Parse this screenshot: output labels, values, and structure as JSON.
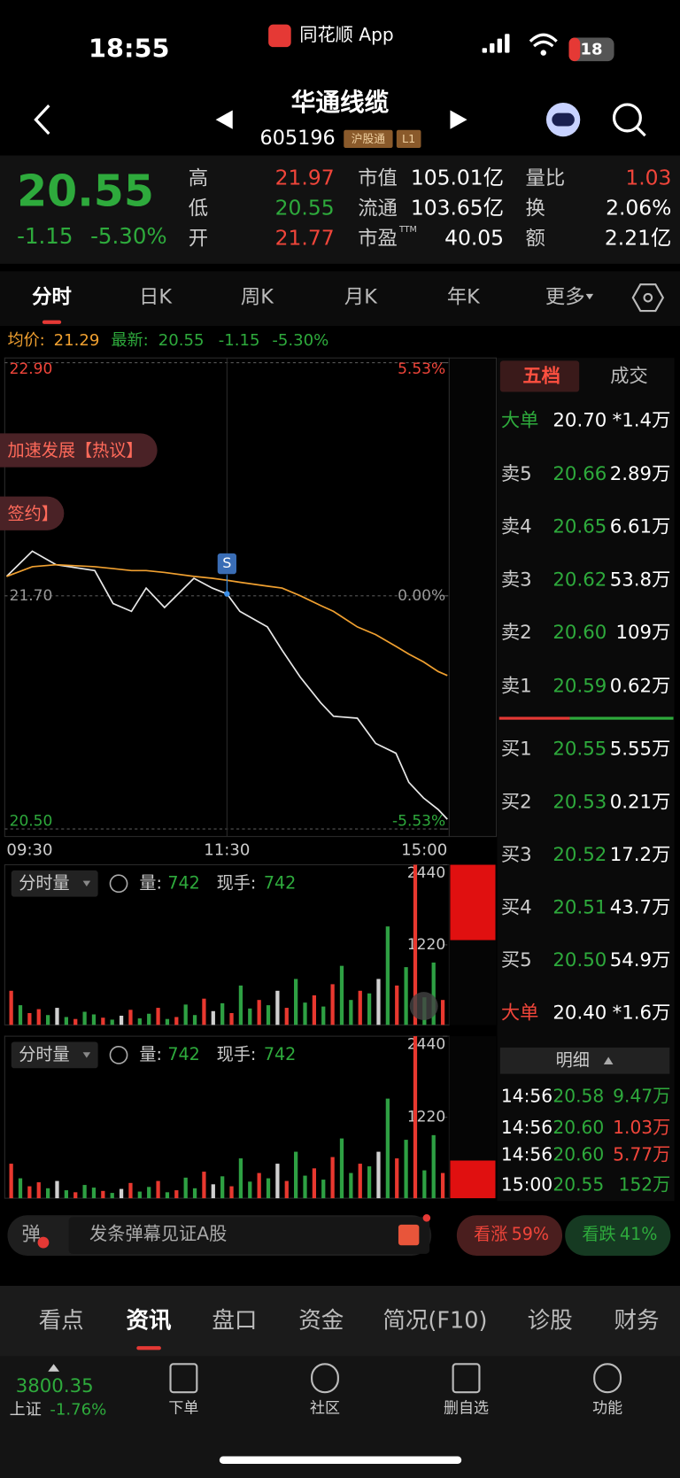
{
  "status_bar": {
    "time": "18:55",
    "app_name": "同花顺 App",
    "battery": "18"
  },
  "header": {
    "name": "华通线缆",
    "code": "605196",
    "tags": [
      "沪股通",
      "L1"
    ]
  },
  "quote": {
    "price": "20.55",
    "change": "-1.15",
    "change_percent": "-5.30%",
    "stats": [
      [
        {
          "label": "高",
          "value": "21.97",
          "color": "#f0453a"
        },
        {
          "label": "市值",
          "value": "105.01亿",
          "color": "#ffffff"
        },
        {
          "label": "量比",
          "value": "1.03",
          "color": "#f0453a"
        }
      ],
      [
        {
          "label": "低",
          "value": "20.55",
          "color": "#2eaa3c"
        },
        {
          "label": "流通",
          "value": "103.65亿",
          "color": "#ffffff"
        },
        {
          "label": "换",
          "value": "2.06%",
          "color": "#ffffff"
        }
      ],
      [
        {
          "label": "开",
          "value": "21.77",
          "color": "#f0453a"
        },
        {
          "label": "市盈",
          "sup": "TTM",
          "value": "40.05",
          "color": "#ffffff"
        },
        {
          "label": "额",
          "value": "2.21亿",
          "color": "#ffffff"
        }
      ]
    ]
  },
  "tabs": {
    "items": [
      "分时",
      "日K",
      "周K",
      "月K",
      "年K",
      "更多"
    ],
    "active": 0
  },
  "info_bar": {
    "avg_label": "均价:",
    "avg": "21.29",
    "last_label": "最新:",
    "last": "20.55",
    "change": "-1.15",
    "change_percent": "-5.30%"
  },
  "news_tags": [
    "加速发展【热议】",
    "签约】"
  ],
  "chart_data": [
    {
      "type": "line",
      "xlim": [
        0,
        240
      ],
      "xticks": [
        {
          "value": 0,
          "label": "09:30"
        },
        {
          "value": 120,
          "label": "11:30"
        },
        {
          "value": 240,
          "label": "15:00"
        }
      ],
      "ylim": [
        20.5,
        22.9
      ],
      "yticks": [
        {
          "value": 22.9,
          "label": "22.90"
        },
        {
          "value": 21.7,
          "label": "21.70"
        },
        {
          "value": 20.5,
          "label": "20.50"
        }
      ],
      "y2lim": [
        -5.53,
        5.53
      ],
      "y2ticks": [
        {
          "value": 5.53,
          "label": "5.53%"
        },
        {
          "value": 0,
          "label": "0.00%"
        },
        {
          "value": -5.53,
          "label": "-5.53%"
        }
      ],
      "tick_colors": [
        "#f0453a",
        "#999999",
        "#2eaa3c"
      ],
      "x": [
        0,
        14,
        27,
        48,
        58,
        68,
        76,
        86,
        102,
        112,
        120,
        127,
        142,
        150,
        160,
        171,
        178,
        191,
        201,
        212,
        219,
        227,
        235,
        240
      ],
      "series": [
        {
          "color": "#e8e8e8",
          "values": [
            21.8,
            21.93,
            21.86,
            21.83,
            21.66,
            21.62,
            21.74,
            21.64,
            21.79,
            21.74,
            21.71,
            21.62,
            21.54,
            21.42,
            21.28,
            21.15,
            21.08,
            21.07,
            20.94,
            20.89,
            20.74,
            20.66,
            20.6,
            20.55
          ]
        },
        {
          "color": "#f0a030",
          "values": [
            21.8,
            21.85,
            21.86,
            21.85,
            21.84,
            21.83,
            21.83,
            21.82,
            21.8,
            21.79,
            21.78,
            21.77,
            21.75,
            21.74,
            21.7,
            21.65,
            21.62,
            21.54,
            21.5,
            21.44,
            21.4,
            21.36,
            21.31,
            21.29
          ]
        }
      ],
      "annotations": [
        {
          "text": "S",
          "x": 120,
          "y": 21.71
        }
      ]
    },
    {
      "type": "bar",
      "indicator": "分时量",
      "volume_label": "量:",
      "volume": "742",
      "hand_label": "现手:",
      "hand": "742",
      "ylim": [
        0,
        2440
      ],
      "yticks": [
        1220,
        2440
      ],
      "values": [
        520,
        300,
        180,
        240,
        150,
        260,
        120,
        90,
        200,
        160,
        110,
        80,
        140,
        230,
        100,
        170,
        260,
        90,
        120,
        310,
        150,
        400,
        210,
        330,
        180,
        600,
        250,
        380,
        300,
        520,
        260,
        700,
        340,
        450,
        280,
        620,
        900,
        380,
        520,
        480,
        700,
        1500,
        600,
        880,
        2440,
        420,
        950,
        380
      ],
      "colors": [
        "#e8382f",
        "#2ea043",
        "#e8382f",
        "#e8382f",
        "#2ea043",
        "#d0d0d0",
        "#2ea043",
        "#e8382f",
        "#2ea043",
        "#2ea043",
        "#e8382f",
        "#2ea043",
        "#d0d0d0",
        "#e8382f",
        "#2ea043",
        "#2ea043",
        "#e8382f",
        "#2ea043",
        "#e8382f",
        "#2ea043",
        "#2ea043",
        "#e8382f",
        "#d0d0d0",
        "#2ea043",
        "#e8382f",
        "#2ea043",
        "#2ea043",
        "#e8382f",
        "#2ea043",
        "#d0d0d0",
        "#e8382f",
        "#2ea043",
        "#2ea043",
        "#e8382f",
        "#2ea043",
        "#e8382f",
        "#2ea043",
        "#2ea043",
        "#e8382f",
        "#2ea043",
        "#d0d0d0",
        "#2ea043",
        "#e8382f",
        "#2ea043",
        "#e8382f",
        "#2ea043",
        "#2ea043",
        "#e8382f"
      ]
    },
    {
      "type": "bar",
      "indicator": "分时量",
      "volume_label": "量:",
      "volume": "742",
      "hand_label": "现手:",
      "hand": "742",
      "ylim": [
        0,
        2440
      ],
      "yticks": [
        1220,
        2440
      ],
      "values": [
        520,
        300,
        180,
        240,
        150,
        260,
        120,
        90,
        200,
        160,
        110,
        80,
        140,
        230,
        100,
        170,
        260,
        90,
        120,
        310,
        150,
        400,
        210,
        330,
        180,
        600,
        250,
        380,
        300,
        520,
        260,
        700,
        340,
        450,
        280,
        620,
        900,
        380,
        520,
        480,
        700,
        1500,
        600,
        880,
        2440,
        420,
        950,
        380
      ],
      "colors": [
        "#e8382f",
        "#2ea043",
        "#e8382f",
        "#e8382f",
        "#2ea043",
        "#d0d0d0",
        "#2ea043",
        "#e8382f",
        "#2ea043",
        "#2ea043",
        "#e8382f",
        "#2ea043",
        "#d0d0d0",
        "#e8382f",
        "#2ea043",
        "#2ea043",
        "#e8382f",
        "#2ea043",
        "#e8382f",
        "#2ea043",
        "#2ea043",
        "#e8382f",
        "#d0d0d0",
        "#2ea043",
        "#e8382f",
        "#2ea043",
        "#2ea043",
        "#e8382f",
        "#2ea043",
        "#d0d0d0",
        "#e8382f",
        "#2ea043",
        "#2ea043",
        "#e8382f",
        "#2ea043",
        "#e8382f",
        "#2ea043",
        "#2ea043",
        "#e8382f",
        "#2ea043",
        "#d0d0d0",
        "#2ea043",
        "#e8382f",
        "#2ea043",
        "#e8382f",
        "#2ea043",
        "#2ea043",
        "#e8382f"
      ]
    }
  ],
  "order_book": {
    "tabs": [
      "五档",
      "成交"
    ],
    "rows": [
      {
        "label": "大单",
        "price": "20.70",
        "volume": "*1.4万",
        "label_color": "#2eaa3c",
        "price_color": "#ffffff"
      },
      {
        "label": "卖5",
        "price": "20.66",
        "volume": "2.89万",
        "label_color": "#cccccc",
        "price_color": "#2eaa3c"
      },
      {
        "label": "卖4",
        "price": "20.65",
        "volume": "6.61万",
        "label_color": "#cccccc",
        "price_color": "#2eaa3c"
      },
      {
        "label": "卖3",
        "price": "20.62",
        "volume": "53.8万",
        "label_color": "#cccccc",
        "price_color": "#2eaa3c"
      },
      {
        "label": "卖2",
        "price": "20.60",
        "volume": "109万",
        "label_color": "#cccccc",
        "price_color": "#2eaa3c"
      },
      {
        "label": "卖1",
        "price": "20.59",
        "volume": "0.62万",
        "label_color": "#cccccc",
        "price_color": "#2eaa3c"
      },
      {
        "label": "买1",
        "price": "20.55",
        "volume": "5.55万",
        "label_color": "#cccccc",
        "price_color": "#2eaa3c"
      },
      {
        "label": "买2",
        "price": "20.53",
        "volume": "0.21万",
        "label_color": "#cccccc",
        "price_color": "#2eaa3c"
      },
      {
        "label": "买3",
        "price": "20.52",
        "volume": "17.2万",
        "label_color": "#cccccc",
        "price_color": "#2eaa3c"
      },
      {
        "label": "买4",
        "price": "20.51",
        "volume": "43.7万",
        "label_color": "#cccccc",
        "price_color": "#2eaa3c"
      },
      {
        "label": "买5",
        "price": "20.50",
        "volume": "54.9万",
        "label_color": "#cccccc",
        "price_color": "#2eaa3c"
      },
      {
        "label": "大单",
        "price": "20.40",
        "volume": "*1.6万",
        "label_color": "#f0453a",
        "price_color": "#ffffff"
      }
    ]
  },
  "trades": {
    "title": "明细",
    "rows": [
      {
        "time": "14:56",
        "price": "20.58",
        "volume": "9.47万",
        "color": "#2eaa3c"
      },
      {
        "time": "14:56",
        "price": "20.60",
        "volume": "1.03万",
        "color": "#f0453a"
      },
      {
        "time": "14:56",
        "price": "20.60",
        "volume": "5.77万",
        "color": "#f0453a"
      },
      {
        "time": "15:00",
        "price": "20.55",
        "volume": "152万",
        "color": "#2eaa3c"
      }
    ]
  },
  "danmu": {
    "icon": "弹",
    "placeholder": "发条弹幕见证A股"
  },
  "sentiment": [
    {
      "label": "看涨",
      "value": "59%",
      "color": "#f0453a",
      "bg": "#4a1e1e"
    },
    {
      "label": "看跌",
      "value": "41%",
      "color": "#2eaa3c",
      "bg": "#163a22"
    }
  ],
  "bottom_tabs": {
    "items": [
      "看点",
      "资讯",
      "盘口",
      "资金",
      "简况(F10)",
      "诊股",
      "财务"
    ],
    "active": 1
  },
  "index": {
    "value": "3800.35",
    "name": "上证",
    "change": "-1.76%"
  },
  "nav": [
    "下单",
    "社区",
    "删自选",
    "功能"
  ]
}
